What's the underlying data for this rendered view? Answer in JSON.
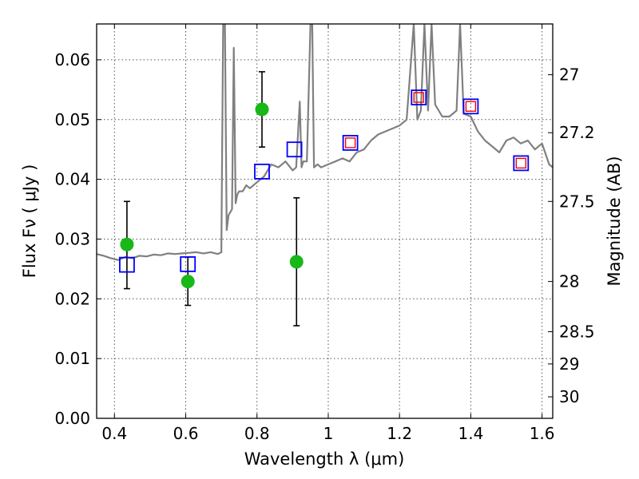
{
  "chart_data": {
    "type": "scatter",
    "xlabel": "Wavelength  λ (μm)",
    "ylabel": "Flux  Fν  ( μJy )",
    "y2label": "Magnitude (AB)",
    "xlim": [
      0.35,
      1.63
    ],
    "ylim": [
      0.0,
      0.066
    ],
    "x_ticks": [
      "0.4",
      "0.6",
      "0.8",
      "1",
      "1.2",
      "1.4",
      "1.6"
    ],
    "x_tick_values": [
      0.4,
      0.6,
      0.8,
      1.0,
      1.2,
      1.4,
      1.6
    ],
    "y_ticks": [
      "0.00",
      "0.01",
      "0.02",
      "0.03",
      "0.04",
      "0.05",
      "0.06"
    ],
    "y_tick_values": [
      0.0,
      0.01,
      0.02,
      0.03,
      0.04,
      0.05,
      0.06
    ],
    "y2_ticks": [
      {
        "label": "27",
        "flux": 0.0575
      },
      {
        "label": "27.2",
        "flux": 0.0478
      },
      {
        "label": "27.5",
        "flux": 0.0363
      },
      {
        "label": "28",
        "flux": 0.0229
      },
      {
        "label": "28.5",
        "flux": 0.0145
      },
      {
        "label": "29",
        "flux": 0.0091
      },
      {
        "label": "30",
        "flux": 0.0036
      }
    ],
    "grid": true,
    "colors": {
      "model": "#808080",
      "observed": "#17b817",
      "errorbar": "#000000",
      "model_photometry": "#0000ff",
      "model_photometry_inner": "#ff0000"
    },
    "model_spectrum": {
      "x": [
        0.35,
        0.37,
        0.39,
        0.41,
        0.43,
        0.45,
        0.47,
        0.49,
        0.51,
        0.53,
        0.55,
        0.57,
        0.59,
        0.61,
        0.63,
        0.65,
        0.67,
        0.69,
        0.7,
        0.705,
        0.71,
        0.715,
        0.72,
        0.725,
        0.73,
        0.735,
        0.74,
        0.745,
        0.75,
        0.76,
        0.77,
        0.78,
        0.79,
        0.8,
        0.81,
        0.82,
        0.83,
        0.84,
        0.86,
        0.88,
        0.9,
        0.91,
        0.92,
        0.925,
        0.93,
        0.94,
        0.95,
        0.955,
        0.96,
        0.97,
        0.98,
        1.0,
        1.02,
        1.04,
        1.06,
        1.08,
        1.1,
        1.12,
        1.14,
        1.16,
        1.18,
        1.2,
        1.22,
        1.24,
        1.25,
        1.26,
        1.27,
        1.28,
        1.29,
        1.3,
        1.32,
        1.34,
        1.36,
        1.37,
        1.38,
        1.4,
        1.42,
        1.44,
        1.46,
        1.48,
        1.5,
        1.52,
        1.54,
        1.56,
        1.58,
        1.6,
        1.62,
        1.63
      ],
      "y": [
        0.0275,
        0.0272,
        0.0268,
        0.0265,
        0.027,
        0.0268,
        0.0272,
        0.0271,
        0.0274,
        0.0273,
        0.0276,
        0.0275,
        0.0276,
        0.0277,
        0.0278,
        0.0276,
        0.0278,
        0.0275,
        0.0278,
        0.066,
        0.066,
        0.0315,
        0.034,
        0.0345,
        0.035,
        0.062,
        0.036,
        0.0375,
        0.038,
        0.038,
        0.039,
        0.0385,
        0.039,
        0.0395,
        0.04,
        0.0405,
        0.0415,
        0.0425,
        0.042,
        0.043,
        0.0415,
        0.042,
        0.053,
        0.042,
        0.043,
        0.043,
        0.066,
        0.066,
        0.042,
        0.0425,
        0.042,
        0.0425,
        0.043,
        0.0435,
        0.043,
        0.0445,
        0.045,
        0.0465,
        0.0475,
        0.048,
        0.0485,
        0.049,
        0.05,
        0.066,
        0.05,
        0.0515,
        0.066,
        0.0515,
        0.066,
        0.0525,
        0.0505,
        0.0505,
        0.0515,
        0.066,
        0.051,
        0.0505,
        0.048,
        0.0465,
        0.0455,
        0.0445,
        0.0465,
        0.047,
        0.046,
        0.0465,
        0.045,
        0.046,
        0.0425,
        0.042
      ]
    },
    "observed_points": [
      {
        "x": 0.435,
        "y": 0.0291,
        "yerr_low": 0.0217,
        "yerr_high": 0.0363
      },
      {
        "x": 0.606,
        "y": 0.0229,
        "yerr_low": 0.0189,
        "yerr_high": 0.027
      },
      {
        "x": 0.814,
        "y": 0.0517,
        "yerr_low": 0.0454,
        "yerr_high": 0.058
      },
      {
        "x": 0.911,
        "y": 0.0262,
        "yerr_low": 0.0155,
        "yerr_high": 0.0369
      }
    ],
    "model_photometry": [
      {
        "x": 0.435,
        "y": 0.0257,
        "inner": false
      },
      {
        "x": 0.606,
        "y": 0.0258,
        "inner": false
      },
      {
        "x": 0.814,
        "y": 0.0413,
        "inner": false
      },
      {
        "x": 0.905,
        "y": 0.045,
        "inner": false
      },
      {
        "x": 1.062,
        "y": 0.0461,
        "inner": true
      },
      {
        "x": 1.254,
        "y": 0.0537,
        "inner": true
      },
      {
        "x": 1.4,
        "y": 0.0522,
        "inner": true
      },
      {
        "x": 1.541,
        "y": 0.0427,
        "inner": true
      }
    ]
  }
}
